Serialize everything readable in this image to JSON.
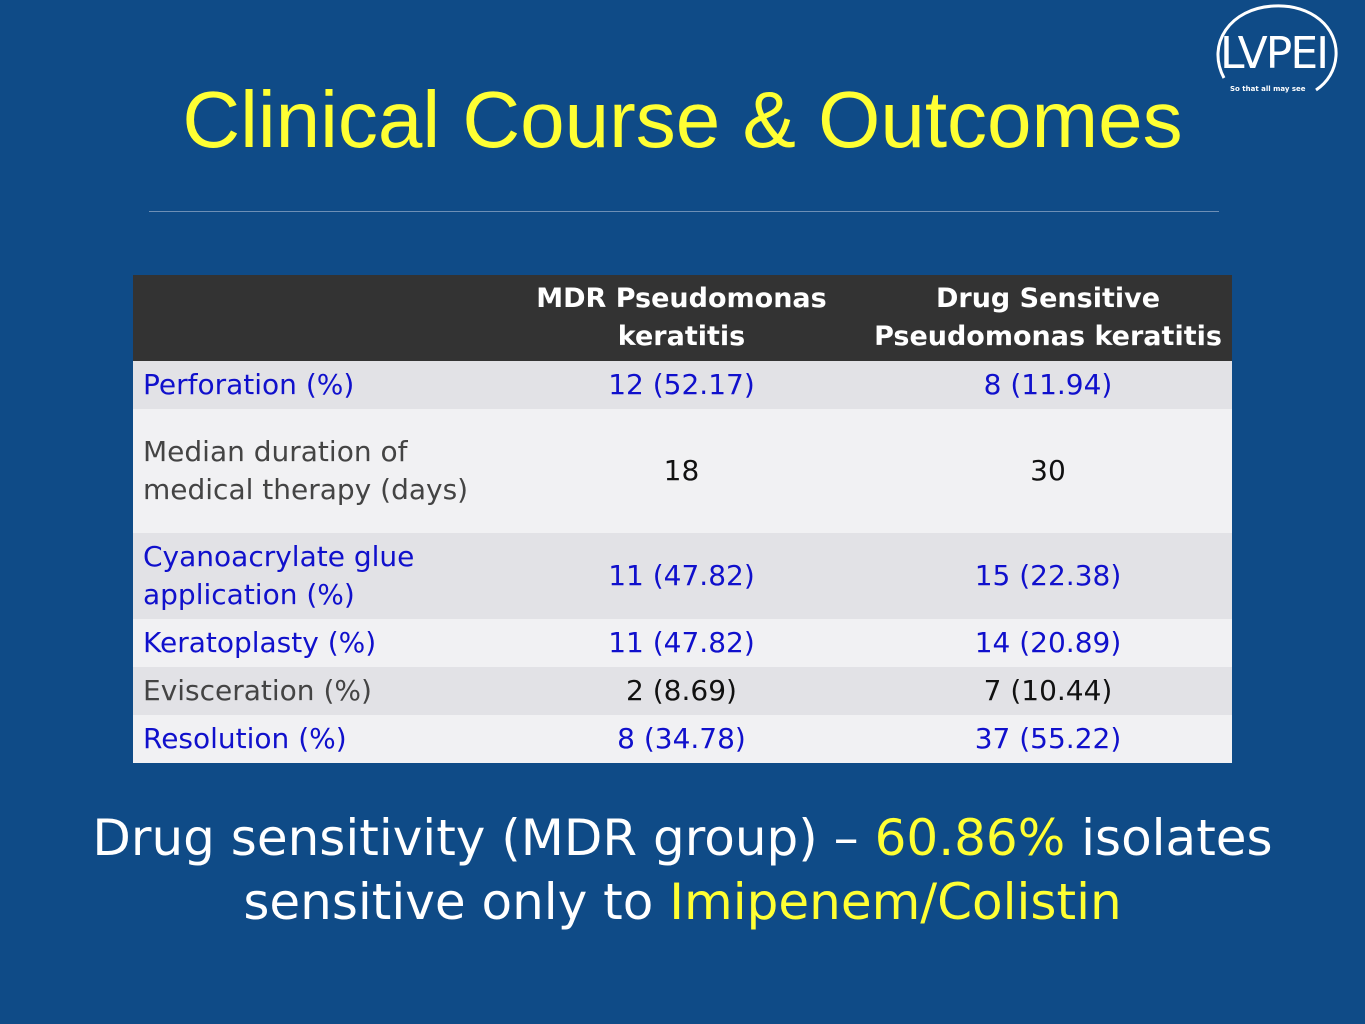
{
  "logo": {
    "text": "LVPEI",
    "tagline": "So that all may see"
  },
  "title": "Clinical Course & Outcomes",
  "table": {
    "headers": [
      "",
      "MDR Pseudomonas keratitis",
      "Drug Sensitive Pseudomonas keratitis"
    ],
    "rows": [
      [
        "Perforation (%)",
        "12 (52.17)",
        "8 (11.94)"
      ],
      [
        "Median duration of medical therapy (days)",
        "18",
        "30"
      ],
      [
        "Cyanoacrylate glue application (%)",
        "11 (47.82)",
        "15 (22.38)"
      ],
      [
        "Keratoplasty (%)",
        "11 (47.82)",
        "14 (20.89)"
      ],
      [
        "Evisceration (%)",
        "2 (8.69)",
        "7 (10.44)"
      ],
      [
        "Resolution (%)",
        "8 (34.78)",
        "37 (55.22)"
      ]
    ]
  },
  "summary": {
    "part1": "Drug sensitivity (MDR group) – ",
    "highlight1": "60.86%",
    "part2": " isolates sensitive only to ",
    "highlight2": "Imipenem/Colistin"
  },
  "colors": {
    "background": "#0f4b87",
    "title": "#ffff33",
    "highlight": "#ffff33",
    "header_bg": "#333333",
    "link_blue": "#1010cc"
  }
}
